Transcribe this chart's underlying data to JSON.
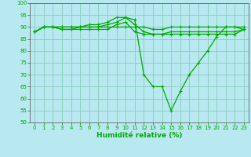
{
  "xlabel": "Humidité relative (%)",
  "background_color": "#b8e8f0",
  "grid_color": "#88ccbb",
  "line_color": "#00aa00",
  "tick_color": "#00aa00",
  "xlim": [
    -0.5,
    23.5
  ],
  "ylim": [
    50,
    100
  ],
  "yticks": [
    50,
    55,
    60,
    65,
    70,
    75,
    80,
    85,
    90,
    95,
    100
  ],
  "xticks": [
    0,
    1,
    2,
    3,
    4,
    5,
    6,
    7,
    8,
    9,
    10,
    11,
    12,
    13,
    14,
    15,
    16,
    17,
    18,
    19,
    20,
    21,
    22,
    23
  ],
  "series": [
    [
      88,
      90,
      90,
      90,
      90,
      90,
      90,
      90,
      90,
      90,
      90,
      90,
      90,
      89,
      89,
      90,
      90,
      90,
      90,
      90,
      90,
      90,
      90,
      90
    ],
    [
      88,
      90,
      90,
      89,
      89,
      89,
      89,
      89,
      89,
      91,
      92,
      88,
      87,
      87,
      87,
      87,
      87,
      87,
      87,
      87,
      87,
      87,
      87,
      89
    ],
    [
      88,
      90,
      90,
      90,
      90,
      90,
      91,
      91,
      92,
      94,
      94,
      93,
      70,
      65,
      65,
      55,
      63,
      70,
      75,
      80,
      86,
      90,
      90,
      89
    ],
    [
      88,
      90,
      90,
      89,
      89,
      90,
      90,
      90,
      91,
      92,
      94,
      91,
      88,
      87,
      87,
      88,
      88,
      88,
      88,
      88,
      88,
      88,
      88,
      89
    ]
  ],
  "tick_fontsize": 5.0,
  "xlabel_fontsize": 6.5,
  "marker_size": 3.5,
  "line_width": 0.9
}
